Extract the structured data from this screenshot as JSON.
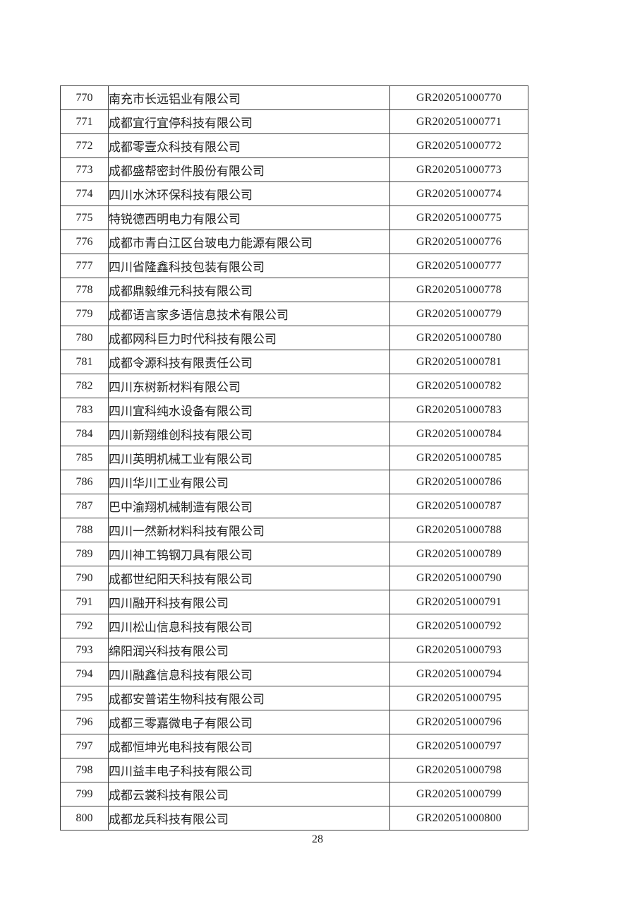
{
  "document": {
    "page_number": "28"
  },
  "table": {
    "rows": [
      {
        "no": "770",
        "company": "南充市长远铝业有限公司",
        "code": "GR202051000770"
      },
      {
        "no": "771",
        "company": "成都宜行宜停科技有限公司",
        "code": "GR202051000771"
      },
      {
        "no": "772",
        "company": "成都零壹众科技有限公司",
        "code": "GR202051000772"
      },
      {
        "no": "773",
        "company": "成都盛帮密封件股份有限公司",
        "code": "GR202051000773"
      },
      {
        "no": "774",
        "company": "四川水沐环保科技有限公司",
        "code": "GR202051000774"
      },
      {
        "no": "775",
        "company": "特锐德西明电力有限公司",
        "code": "GR202051000775"
      },
      {
        "no": "776",
        "company": "成都市青白江区台玻电力能源有限公司",
        "code": "GR202051000776"
      },
      {
        "no": "777",
        "company": "四川省隆鑫科技包装有限公司",
        "code": "GR202051000777"
      },
      {
        "no": "778",
        "company": "成都鼎毅维元科技有限公司",
        "code": "GR202051000778"
      },
      {
        "no": "779",
        "company": "成都语言家多语信息技术有限公司",
        "code": "GR202051000779"
      },
      {
        "no": "780",
        "company": "成都网科巨力时代科技有限公司",
        "code": "GR202051000780"
      },
      {
        "no": "781",
        "company": "成都令源科技有限责任公司",
        "code": "GR202051000781"
      },
      {
        "no": "782",
        "company": "四川东树新材料有限公司",
        "code": "GR202051000782"
      },
      {
        "no": "783",
        "company": "四川宜科纯水设备有限公司",
        "code": "GR202051000783"
      },
      {
        "no": "784",
        "company": "四川新翔维创科技有限公司",
        "code": "GR202051000784"
      },
      {
        "no": "785",
        "company": "四川英明机械工业有限公司",
        "code": "GR202051000785"
      },
      {
        "no": "786",
        "company": "四川华川工业有限公司",
        "code": "GR202051000786"
      },
      {
        "no": "787",
        "company": "巴中渝翔机械制造有限公司",
        "code": "GR202051000787"
      },
      {
        "no": "788",
        "company": "四川一然新材料科技有限公司",
        "code": "GR202051000788"
      },
      {
        "no": "789",
        "company": "四川神工钨钢刀具有限公司",
        "code": "GR202051000789"
      },
      {
        "no": "790",
        "company": "成都世纪阳天科技有限公司",
        "code": "GR202051000790"
      },
      {
        "no": "791",
        "company": "四川融开科技有限公司",
        "code": "GR202051000791"
      },
      {
        "no": "792",
        "company": "四川松山信息科技有限公司",
        "code": "GR202051000792"
      },
      {
        "no": "793",
        "company": "绵阳润兴科技有限公司",
        "code": "GR202051000793"
      },
      {
        "no": "794",
        "company": "四川融鑫信息科技有限公司",
        "code": "GR202051000794"
      },
      {
        "no": "795",
        "company": "成都安普诺生物科技有限公司",
        "code": "GR202051000795"
      },
      {
        "no": "796",
        "company": "成都三零嘉微电子有限公司",
        "code": "GR202051000796"
      },
      {
        "no": "797",
        "company": "成都恒坤光电科技有限公司",
        "code": "GR202051000797"
      },
      {
        "no": "798",
        "company": "四川益丰电子科技有限公司",
        "code": "GR202051000798"
      },
      {
        "no": "799",
        "company": "成都云裳科技有限公司",
        "code": "GR202051000799"
      },
      {
        "no": "800",
        "company": "成都龙兵科技有限公司",
        "code": "GR202051000800"
      }
    ]
  }
}
